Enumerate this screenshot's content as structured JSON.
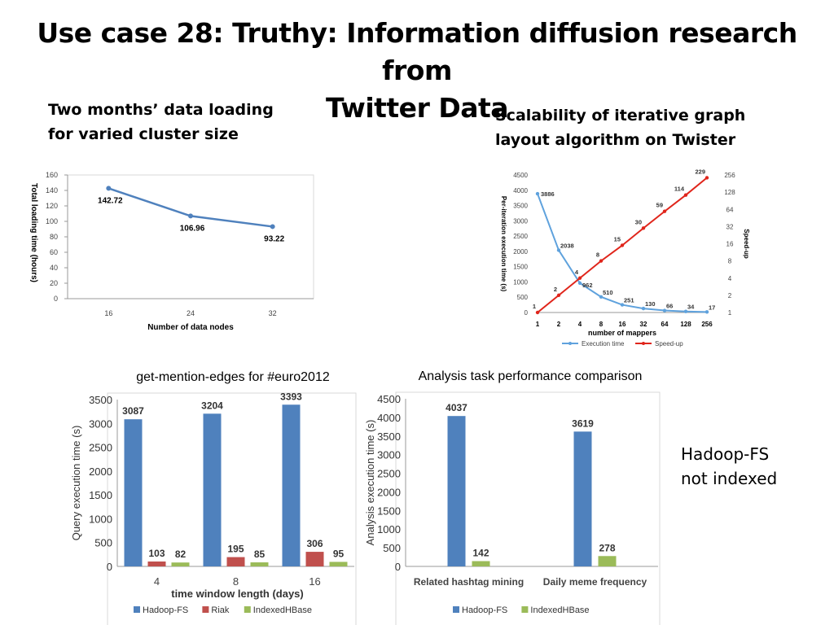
{
  "slide": {
    "title_line1": "Use case 28: Truthy: Information diffusion research from",
    "title_line2": "Twitter Data",
    "caption_left_line1": "Two months’ data loading",
    "caption_left_line2": "for varied cluster size",
    "caption_right_line1": "Scalability of iterative graph",
    "caption_right_line2": "layout algorithm on Twister",
    "note_line1": "Hadoop-FS",
    "note_line2": "not indexed"
  },
  "colors": {
    "blue": "#4f81bd",
    "red": "#c0504d",
    "green": "#9bbb59",
    "lightblue": "#5fa2dd",
    "linered": "#e0251b"
  },
  "chart_data": [
    {
      "type": "line",
      "title": "",
      "xlabel": "Number of data nodes",
      "ylabel": "Total loading time (hours)",
      "categories": [
        "16",
        "24",
        "32"
      ],
      "values": [
        142.72,
        106.96,
        93.22
      ],
      "value_labels": [
        "142.72",
        "106.96",
        "93.22"
      ],
      "ylim": [
        0,
        160
      ],
      "yticks": [
        "0",
        "20",
        "40",
        "60",
        "80",
        "100",
        "120",
        "140",
        "160"
      ],
      "grid": false
    },
    {
      "type": "line",
      "title": "",
      "xlabel": "number of mappers",
      "ylabel": "Per-iteration execution time (s)",
      "ylabel_right": "Speed-up",
      "categories": [
        "1",
        "2",
        "4",
        "8",
        "16",
        "32",
        "64",
        "128",
        "256"
      ],
      "series": [
        {
          "name": "Execution time",
          "axis": "left",
          "values": [
            3886,
            2038,
            962,
            510,
            251,
            130,
            66,
            34,
            17
          ],
          "labels": [
            "3886",
            "2038",
            "962",
            "510",
            "251",
            "130",
            "66",
            "34",
            "17"
          ]
        },
        {
          "name": "Speed-up",
          "axis": "right",
          "scale": "log2",
          "values": [
            1,
            2,
            4,
            8,
            15,
            30,
            59,
            114,
            229
          ],
          "labels": [
            "1",
            "2",
            "4",
            "8",
            "15",
            "30",
            "59",
            "114",
            "229"
          ]
        }
      ],
      "ylim": [
        0,
        4500
      ],
      "yticks": [
        "0",
        "500",
        "1000",
        "1500",
        "2000",
        "2500",
        "3000",
        "3500",
        "4000",
        "4500"
      ],
      "ylim_right": [
        1,
        256
      ],
      "yticks_right": [
        "1",
        "2",
        "4",
        "8",
        "16",
        "32",
        "64",
        "128",
        "256"
      ],
      "legend": "bottom"
    },
    {
      "type": "bar",
      "title": "get-mention-edges for #euro2012",
      "xlabel": "time window length (days)",
      "ylabel": "Query execution time (s)",
      "categories": [
        "4",
        "8",
        "16"
      ],
      "series": [
        {
          "name": "Hadoop-FS",
          "values": [
            3087,
            3204,
            3393
          ]
        },
        {
          "name": "Riak",
          "values": [
            103,
            195,
            306
          ]
        },
        {
          "name": "IndexedHBase",
          "values": [
            82,
            85,
            95
          ]
        }
      ],
      "ylim": [
        0,
        3500
      ],
      "yticks": [
        "0",
        "500",
        "1000",
        "1500",
        "2000",
        "2500",
        "3000",
        "3500"
      ],
      "legend": "bottom"
    },
    {
      "type": "bar",
      "title": "Analysis task performance comparison",
      "xlabel": "",
      "ylabel": "Analysis execution time (s)",
      "categories": [
        "Related hashtag mining",
        "Daily meme frequency"
      ],
      "series": [
        {
          "name": "Hadoop-FS",
          "values": [
            4037,
            3619
          ]
        },
        {
          "name": "IndexedHBase",
          "values": [
            142,
            278
          ]
        }
      ],
      "ylim": [
        0,
        4500
      ],
      "yticks": [
        "0",
        "500",
        "1000",
        "1500",
        "2000",
        "2500",
        "3000",
        "3500",
        "4000",
        "4500"
      ],
      "legend": "bottom"
    }
  ]
}
